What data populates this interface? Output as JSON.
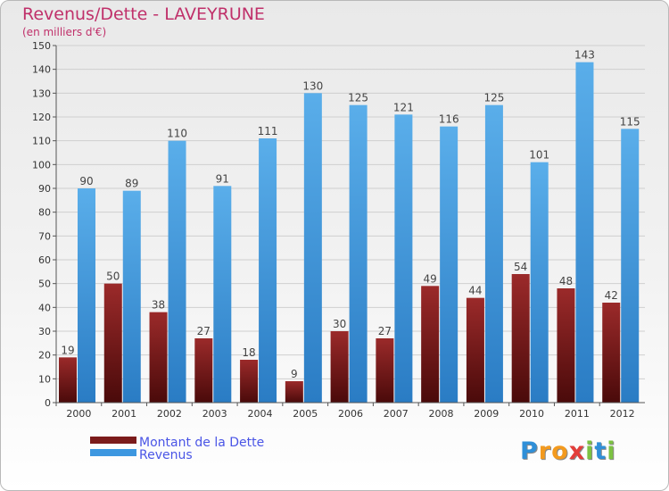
{
  "chart_data": {
    "type": "bar",
    "title": "Revenus/Dette - LAVEYRUNE",
    "subtitle": "(en milliers d'€)",
    "categories": [
      "2000",
      "2001",
      "2002",
      "2003",
      "2004",
      "2005",
      "2006",
      "2007",
      "2008",
      "2009",
      "2010",
      "2011",
      "2012"
    ],
    "series": [
      {
        "name": "Montant de la Dette",
        "color": "#7b1b1b",
        "values": [
          19,
          50,
          38,
          27,
          18,
          9,
          30,
          27,
          49,
          44,
          54,
          48,
          42
        ]
      },
      {
        "name": "Revenus",
        "color": "#3d97e0",
        "values": [
          90,
          89,
          110,
          91,
          111,
          130,
          125,
          121,
          116,
          125,
          101,
          143,
          115
        ]
      }
    ],
    "ylim": [
      0,
      150
    ],
    "ytick_step": 10,
    "grid": true,
    "legend_position": "bottom-left"
  },
  "logo": {
    "letters": [
      {
        "char": "P",
        "color": "#2f8fd8"
      },
      {
        "char": "r",
        "color": "#f39a1e"
      },
      {
        "char": "o",
        "color": "#f39a1e"
      },
      {
        "char": "x",
        "color": "#e33e3a"
      },
      {
        "char": "i",
        "color": "#7cc242"
      },
      {
        "char": "t",
        "color": "#2f8fd8"
      },
      {
        "char": "i",
        "color": "#7cc242"
      }
    ]
  }
}
